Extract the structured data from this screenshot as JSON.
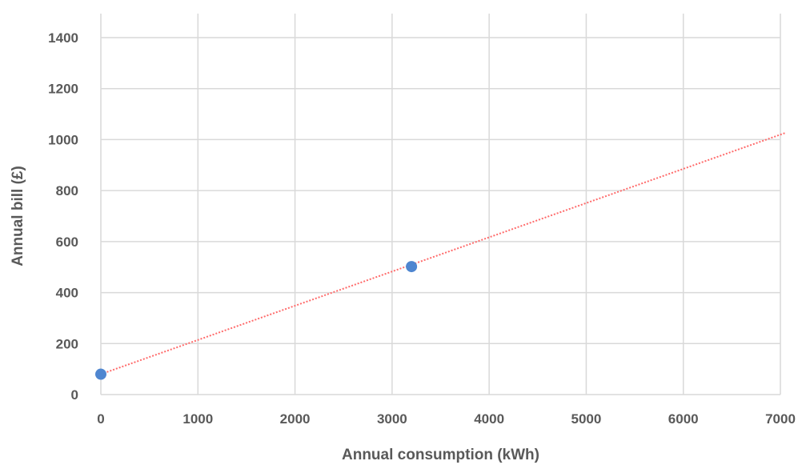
{
  "chart_data": {
    "type": "scatter",
    "title": "",
    "xlabel": "Annual consumption (kWh)",
    "ylabel": "Annual bill (£)",
    "xlim": [
      0,
      7000
    ],
    "ylim": [
      0,
      1400
    ],
    "x_ticks": [
      0,
      1000,
      2000,
      3000,
      4000,
      5000,
      6000,
      7000
    ],
    "y_ticks": [
      0,
      200,
      400,
      600,
      800,
      1000,
      1200,
      1400
    ],
    "grid": true,
    "legend": "none",
    "series": [
      {
        "points": [
          {
            "x": 0,
            "y": 80
          },
          {
            "x": 3200,
            "y": 502
          }
        ],
        "color": "#4f86d0"
      }
    ],
    "trendline": {
      "type": "linear",
      "from": {
        "x": 0,
        "y": 80
      },
      "to": {
        "x": 7000,
        "y": 1023
      },
      "color": "#ff6b6b",
      "style": "dotted"
    }
  }
}
